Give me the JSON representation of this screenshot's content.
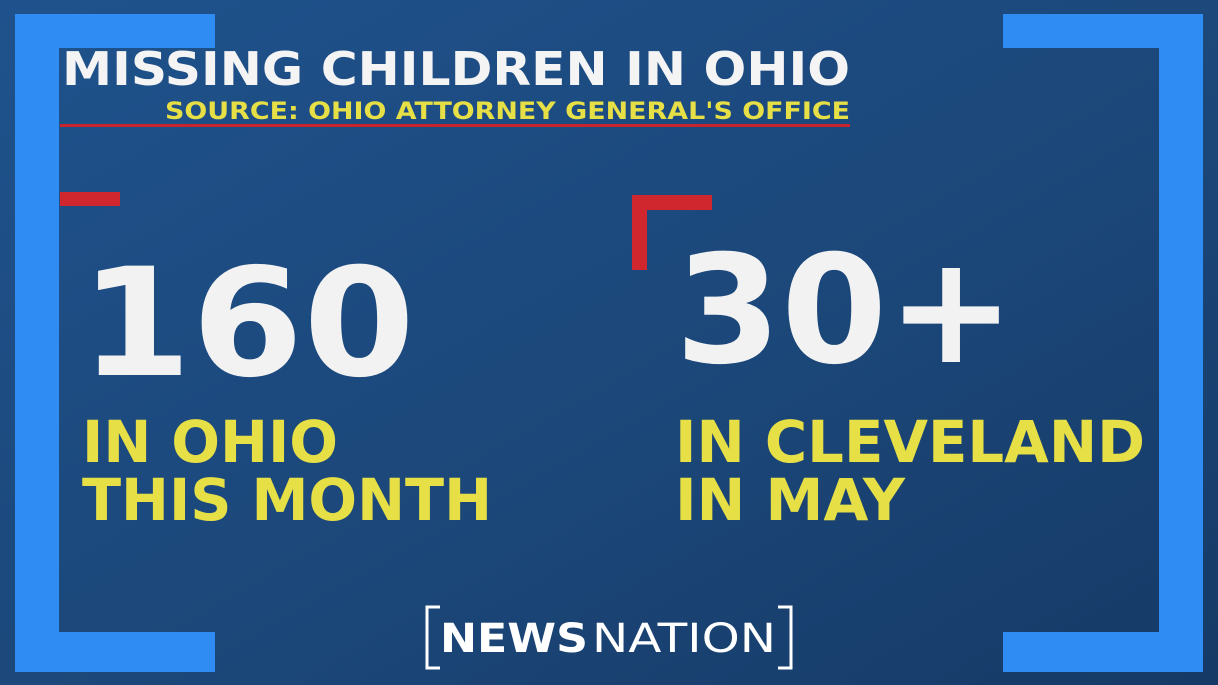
{
  "header": {
    "title": "MISSING CHILDREN IN OHIO",
    "source": "SOURCE: OHIO ATTORNEY GENERAL'S OFFICE"
  },
  "stats": [
    {
      "figure": "160",
      "lines": [
        "IN OHIO",
        "THIS MONTH"
      ]
    },
    {
      "figure": "30+",
      "lines": [
        "IN CLEVELAND",
        "IN MAY"
      ]
    }
  ],
  "logo": {
    "bold": "NEWS",
    "light": "NATION"
  }
}
